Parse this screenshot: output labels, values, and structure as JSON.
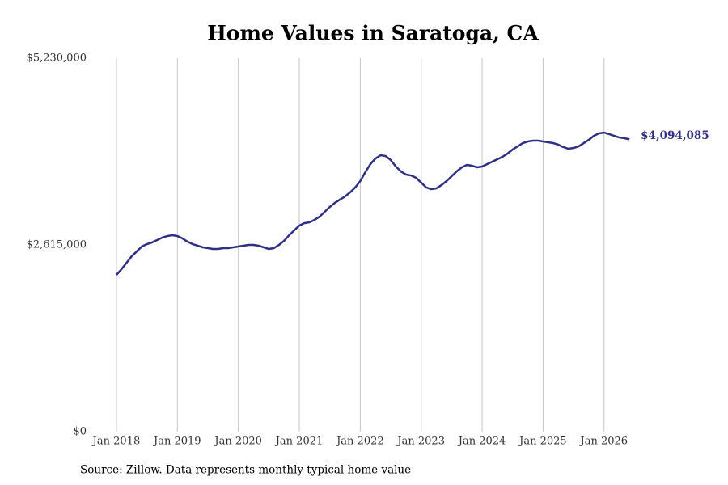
{
  "chart_data": {
    "type": "line",
    "title": "Home Values in Saratoga, CA",
    "source": "Source: Zillow. Data represents monthly typical home value",
    "x": [
      "2018-01",
      "2018-02",
      "2018-03",
      "2018-04",
      "2018-05",
      "2018-06",
      "2018-07",
      "2018-08",
      "2018-09",
      "2018-10",
      "2018-11",
      "2018-12",
      "2019-01",
      "2019-02",
      "2019-03",
      "2019-04",
      "2019-05",
      "2019-06",
      "2019-07",
      "2019-08",
      "2019-09",
      "2019-10",
      "2019-11",
      "2019-12",
      "2020-01",
      "2020-02",
      "2020-03",
      "2020-04",
      "2020-05",
      "2020-06",
      "2020-07",
      "2020-08",
      "2020-09",
      "2020-10",
      "2020-11",
      "2020-12",
      "2021-01",
      "2021-02",
      "2021-03",
      "2021-04",
      "2021-05",
      "2021-06",
      "2021-07",
      "2021-08",
      "2021-09",
      "2021-10",
      "2021-11",
      "2021-12",
      "2022-01",
      "2022-02",
      "2022-03",
      "2022-04",
      "2022-05",
      "2022-06",
      "2022-07",
      "2022-08",
      "2022-09",
      "2022-10",
      "2022-11",
      "2022-12",
      "2023-01",
      "2023-02",
      "2023-03",
      "2023-04",
      "2023-05",
      "2023-06",
      "2023-07",
      "2023-08",
      "2023-09",
      "2023-10",
      "2023-11",
      "2023-12",
      "2024-01",
      "2024-02",
      "2024-03",
      "2024-04",
      "2024-05",
      "2024-06",
      "2024-07",
      "2024-08",
      "2024-09",
      "2024-10",
      "2024-11",
      "2024-12",
      "2025-01",
      "2025-02",
      "2025-03",
      "2025-04",
      "2025-05",
      "2025-06",
      "2025-07",
      "2025-08",
      "2025-09",
      "2025-10",
      "2025-11",
      "2025-12",
      "2026-01",
      "2026-02",
      "2026-03",
      "2026-04",
      "2026-05",
      "2026-06"
    ],
    "series": [
      {
        "color": "#2f2f85",
        "values": [
          2196000,
          2275000,
          2366000,
          2456000,
          2524000,
          2592000,
          2626000,
          2649000,
          2683000,
          2717000,
          2739000,
          2751000,
          2739000,
          2705000,
          2660000,
          2626000,
          2604000,
          2581000,
          2570000,
          2558000,
          2558000,
          2570000,
          2570000,
          2581000,
          2592000,
          2604000,
          2615000,
          2615000,
          2604000,
          2581000,
          2558000,
          2570000,
          2615000,
          2672000,
          2751000,
          2819000,
          2887000,
          2921000,
          2932000,
          2966000,
          3011000,
          3079000,
          3147000,
          3204000,
          3249000,
          3294000,
          3351000,
          3419000,
          3509000,
          3634000,
          3747000,
          3826000,
          3871000,
          3860000,
          3804000,
          3713000,
          3645000,
          3600000,
          3588000,
          3554000,
          3487000,
          3419000,
          3396000,
          3407000,
          3453000,
          3509000,
          3577000,
          3645000,
          3702000,
          3736000,
          3724000,
          3702000,
          3713000,
          3747000,
          3781000,
          3815000,
          3849000,
          3894000,
          3951000,
          3996000,
          4041000,
          4064000,
          4075000,
          4075000,
          4064000,
          4053000,
          4041000,
          4019000,
          3985000,
          3962000,
          3973000,
          3996000,
          4041000,
          4087000,
          4143000,
          4177000,
          4188000,
          4166000,
          4143000,
          4120000,
          4109000,
          4094085
        ],
        "value_labels": [
          null,
          null,
          null,
          null,
          null,
          null,
          null,
          null,
          null,
          null,
          null,
          null,
          null,
          null,
          null,
          null,
          null,
          null,
          null,
          null,
          null,
          null,
          null,
          null,
          null,
          null,
          null,
          null,
          null,
          null,
          null,
          null,
          null,
          null,
          null,
          null,
          null,
          null,
          null,
          null,
          null,
          null,
          null,
          null,
          null,
          null,
          null,
          null,
          null,
          null,
          null,
          null,
          null,
          null,
          null,
          null,
          null,
          null,
          null,
          null,
          null,
          null,
          null,
          null,
          null,
          null,
          null,
          null,
          null,
          null,
          null,
          null,
          null,
          null,
          null,
          null,
          null,
          null,
          null,
          null,
          null,
          null,
          null,
          null,
          null,
          null,
          null,
          null,
          null,
          null,
          null,
          null,
          null,
          null,
          null,
          null,
          null,
          null,
          null,
          null,
          null,
          "$4,094,085"
        ]
      }
    ],
    "xlim": [
      "2017-06",
      "2026-09"
    ],
    "xticks": [
      {
        "value": "2018-01",
        "label": "Jan 2018"
      },
      {
        "value": "2019-01",
        "label": "Jan 2019"
      },
      {
        "value": "2020-01",
        "label": "Jan 2020"
      },
      {
        "value": "2021-01",
        "label": "Jan 2021"
      },
      {
        "value": "2022-01",
        "label": "Jan 2022"
      },
      {
        "value": "2023-01",
        "label": "Jan 2023"
      },
      {
        "value": "2024-01",
        "label": "Jan 2024"
      },
      {
        "value": "2025-01",
        "label": "Jan 2025"
      },
      {
        "value": "2026-01",
        "label": "Jan 2026"
      }
    ],
    "ylim": [
      0,
      5230000
    ],
    "yticks": [
      {
        "value": 0,
        "label": "$0"
      },
      {
        "value": 2615000,
        "label": "$2,615,000"
      },
      {
        "value": 5230000,
        "label": "$5,230,000"
      }
    ],
    "grid": "x"
  }
}
